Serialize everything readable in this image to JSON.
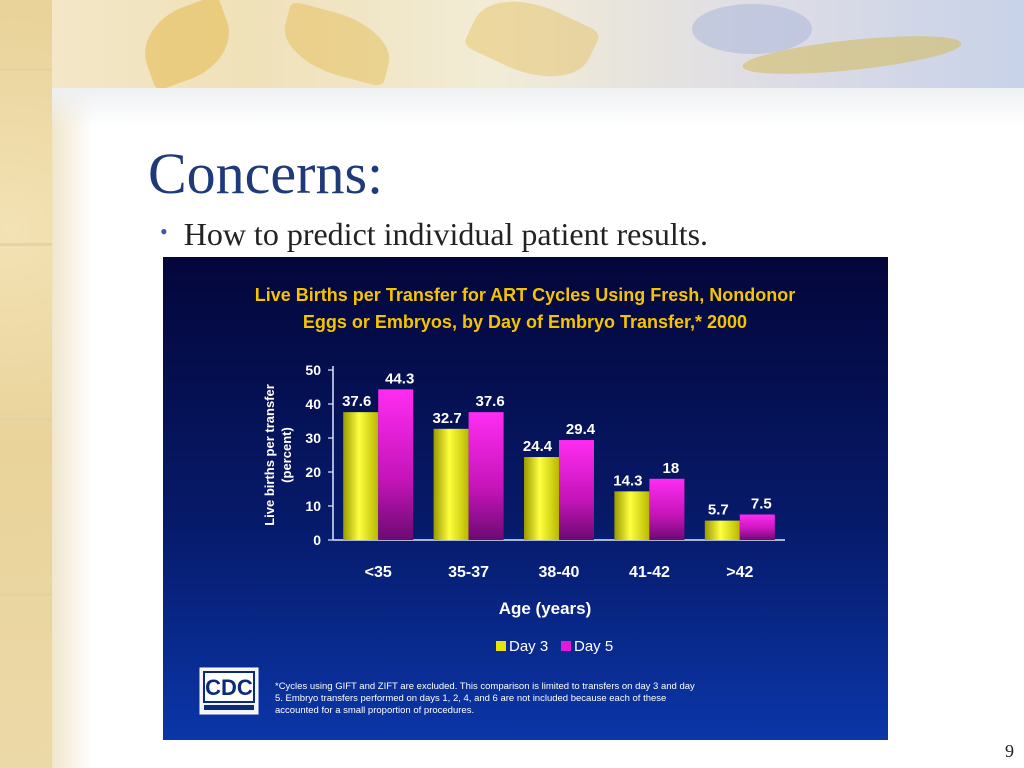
{
  "slide": {
    "title": "Concerns:",
    "bullet": "How to predict individual patient results.",
    "page_number": "9"
  },
  "logo": {
    "text": "CDC"
  },
  "footnote": [
    "*Cycles using  GIFT and ZIFT are excluded.  This comparison is limited to transfers on day 3 and day",
    "5.  Embryo transfers performed on days 1, 2, 4, and 6 are not included because each of these",
    "accounted for a small proportion of procedures."
  ],
  "colors": {
    "title": "#1f3a7a",
    "chart_title": "#f5c400",
    "day3": "#e6e600",
    "day5": "#e01ad8",
    "label": "#ffffff"
  },
  "chart_data": {
    "type": "bar",
    "title_lines": [
      "Live Births per Transfer for ART Cycles Using Fresh, Nondonor",
      "Eggs or Embryos, by Day of Embryo Transfer,* 2000"
    ],
    "xlabel": "Age (years)",
    "ylabel_lines": [
      "Live births per transfer",
      "(percent)"
    ],
    "categories": [
      "<35",
      "35-37",
      "38-40",
      "41-42",
      ">42"
    ],
    "series": [
      {
        "name": "Day 3",
        "values": [
          37.6,
          32.7,
          24.4,
          14.3,
          5.7
        ],
        "labels": [
          "37.6",
          "32.7",
          "24.4",
          "14.3",
          "5.7"
        ]
      },
      {
        "name": "Day 5",
        "values": [
          44.3,
          37.6,
          29.4,
          18,
          7.5
        ],
        "labels": [
          "44.3",
          "37.6",
          "29.4",
          "18",
          "7.5"
        ]
      }
    ],
    "ylim": [
      0,
      50
    ],
    "yticks": [
      0,
      10,
      20,
      30,
      40,
      50
    ],
    "legend_position": "bottom",
    "grid": false
  }
}
